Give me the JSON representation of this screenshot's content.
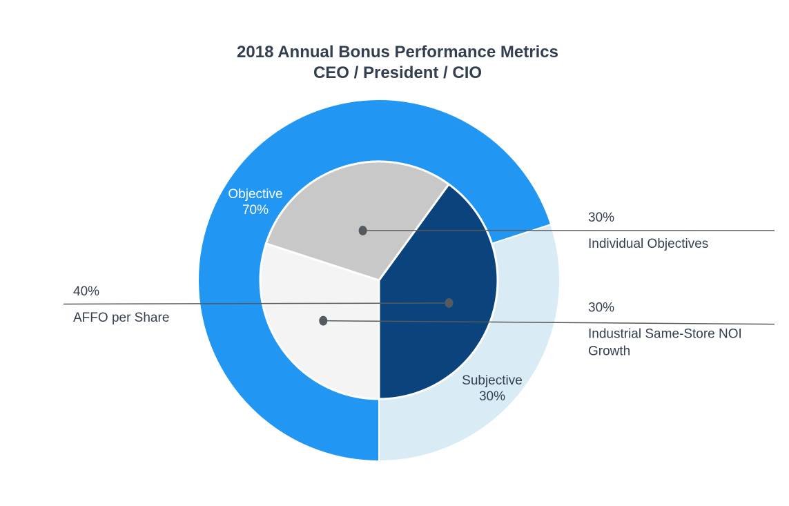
{
  "chart_data": {
    "type": "pie",
    "subtype": "nested-donut",
    "title_line1": "2018 Annual Bonus Performance Metrics",
    "title_line2": "CEO / President / CIO",
    "outer_ring": [
      {
        "label": "Objective",
        "value": 70,
        "value_label": "70%",
        "color": "#2196f3",
        "label_color": "#ffffff"
      },
      {
        "label": "Subjective",
        "value": 30,
        "value_label": "30%",
        "color": "#d9ecf6",
        "label_color": "#333f50"
      }
    ],
    "inner_pie": [
      {
        "label": "AFFO per Share",
        "value": 40,
        "value_label": "40%",
        "color": "#0b447c",
        "label_side": "left"
      },
      {
        "label": "Industrial Same-Store NOI Growth",
        "label_lines": [
          "Industrial Same-Store NOI",
          "Growth"
        ],
        "value": 30,
        "value_label": "30%",
        "color": "#f4f4f4",
        "label_side": "right"
      },
      {
        "label": "Individual Objectives",
        "value": 30,
        "value_label": "30%",
        "color": "#c8c8c8",
        "label_side": "right"
      }
    ],
    "leader_dot_color": "#555a60",
    "leader_line_color": "#595959"
  }
}
